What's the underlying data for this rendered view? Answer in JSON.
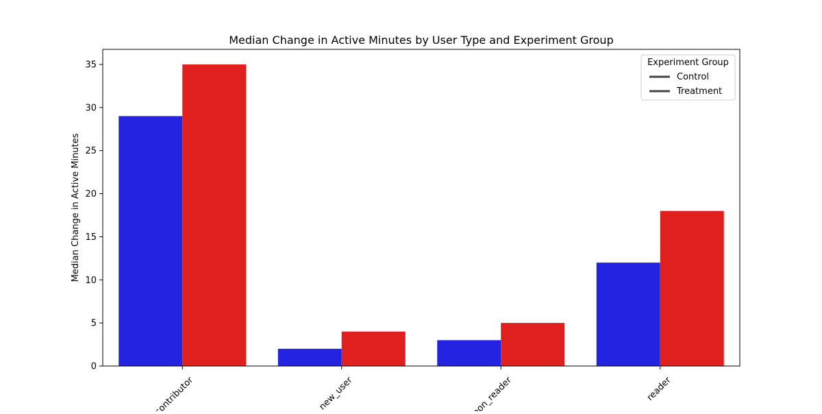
{
  "chart_data": {
    "type": "bar",
    "title": "Median Change in Active Minutes by User Type and Experiment Group",
    "xlabel": "",
    "ylabel": "Median Change in Active Minutes",
    "categories": [
      "contributor",
      "new_user",
      "non_reader",
      "reader"
    ],
    "series": [
      {
        "name": "Control",
        "values": [
          29,
          2,
          3,
          12
        ],
        "color": "#2323e1"
      },
      {
        "name": "Treatment",
        "values": [
          35,
          4,
          5,
          18
        ],
        "color": "#e01f1f"
      }
    ],
    "ylim": [
      0,
      36.75
    ],
    "yticks": [
      0,
      5,
      10,
      15,
      20,
      25,
      30,
      35
    ],
    "grid": false,
    "legend": {
      "title": "Experiment Group",
      "position": "top-right",
      "entries": [
        "Control",
        "Treatment"
      ],
      "handle_color": "#444444"
    }
  }
}
